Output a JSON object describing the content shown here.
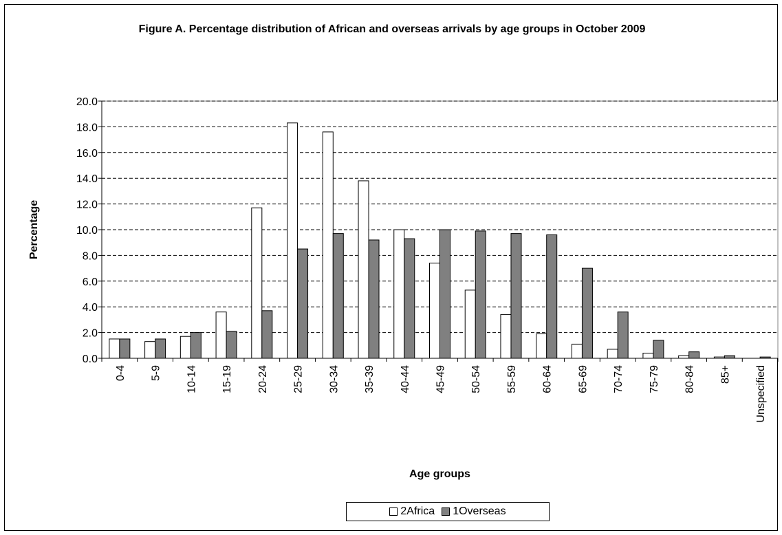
{
  "chart_data": {
    "type": "bar",
    "title": "Figure A. Percentage distribution of African and overseas arrivals by age groups in October 2009",
    "xlabel": "Age groups",
    "ylabel": "Percentage",
    "ylim": [
      0,
      20
    ],
    "yticks": [
      "0.0",
      "2.0",
      "4.0",
      "6.0",
      "8.0",
      "10.0",
      "12.0",
      "14.0",
      "16.0",
      "18.0",
      "20.0"
    ],
    "grid": "horizontal dashed",
    "legend_position": "bottom",
    "categories": [
      "0-4",
      "5-9",
      "10-14",
      "15-19",
      "20-24",
      "25-29",
      "30-34",
      "35-39",
      "40-44",
      "45-49",
      "50-54",
      "55-59",
      "60-64",
      "65-69",
      "70-74",
      "75-79",
      "80-84",
      "85+",
      "Unspecified"
    ],
    "series": [
      {
        "name": "2Africa",
        "color": "#ffffff",
        "values": [
          1.5,
          1.3,
          1.7,
          3.6,
          11.7,
          18.3,
          17.6,
          13.8,
          10.0,
          7.4,
          5.3,
          3.4,
          1.9,
          1.1,
          0.7,
          0.4,
          0.2,
          0.1,
          0.0
        ]
      },
      {
        "name": "1Overseas",
        "color": "#808080",
        "values": [
          1.5,
          1.5,
          2.0,
          2.1,
          3.7,
          8.5,
          9.7,
          9.2,
          9.3,
          10.0,
          9.9,
          9.7,
          9.6,
          7.0,
          3.6,
          1.4,
          0.5,
          0.2,
          0.1
        ]
      }
    ]
  }
}
